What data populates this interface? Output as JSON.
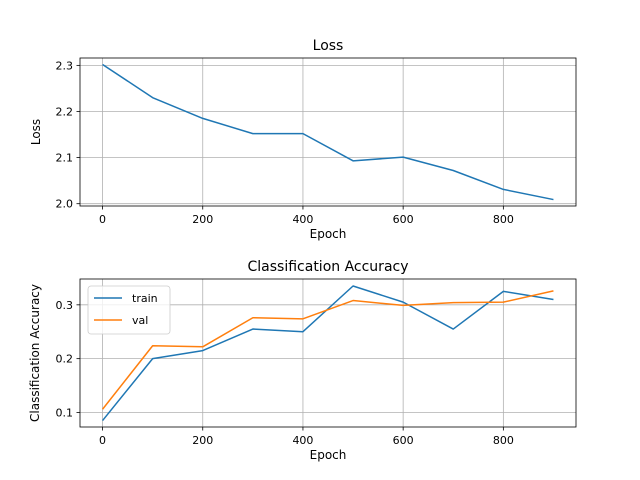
{
  "chart_data": [
    {
      "type": "line",
      "title": "Loss",
      "xlabel": "Epoch",
      "ylabel": "Loss",
      "xlim": [
        -45,
        945
      ],
      "ylim": [
        1.995,
        2.316
      ],
      "grid": true,
      "xticks": [
        0,
        200,
        400,
        600,
        800
      ],
      "yticks": [
        2.0,
        2.1,
        2.2,
        2.3
      ],
      "tick_labels_x": [
        "0",
        "200",
        "400",
        "600",
        "800"
      ],
      "tick_labels_y": [
        "2.0",
        "2.1",
        "2.2",
        "2.3"
      ],
      "series": [
        {
          "color": "#1f77b4",
          "x": [
            0,
            100,
            200,
            300,
            400,
            500,
            600,
            700,
            800,
            900
          ],
          "y": [
            2.302,
            2.23,
            2.185,
            2.152,
            2.152,
            2.093,
            2.101,
            2.072,
            2.031,
            2.009
          ]
        }
      ]
    },
    {
      "type": "line",
      "title": "Classification Accuracy",
      "xlabel": "Epoch",
      "ylabel": "Classification Accuracy",
      "xlim": [
        -45,
        945
      ],
      "ylim": [
        0.073,
        0.348
      ],
      "grid": true,
      "legend": "upper-left",
      "xticks": [
        0,
        200,
        400,
        600,
        800
      ],
      "yticks": [
        0.1,
        0.2,
        0.3
      ],
      "tick_labels_x": [
        "0",
        "200",
        "400",
        "600",
        "800"
      ],
      "tick_labels_y": [
        "0.1",
        "0.2",
        "0.3"
      ],
      "series": [
        {
          "name": "train",
          "color": "#1f77b4",
          "x": [
            0,
            100,
            200,
            300,
            400,
            500,
            600,
            700,
            800,
            900
          ],
          "y": [
            0.085,
            0.2,
            0.215,
            0.255,
            0.25,
            0.335,
            0.305,
            0.255,
            0.325,
            0.31
          ]
        },
        {
          "name": "val",
          "color": "#ff7f0e",
          "x": [
            0,
            100,
            200,
            300,
            400,
            500,
            600,
            700,
            800,
            900
          ],
          "y": [
            0.106,
            0.224,
            0.222,
            0.276,
            0.274,
            0.308,
            0.299,
            0.304,
            0.305,
            0.326
          ]
        }
      ]
    }
  ]
}
